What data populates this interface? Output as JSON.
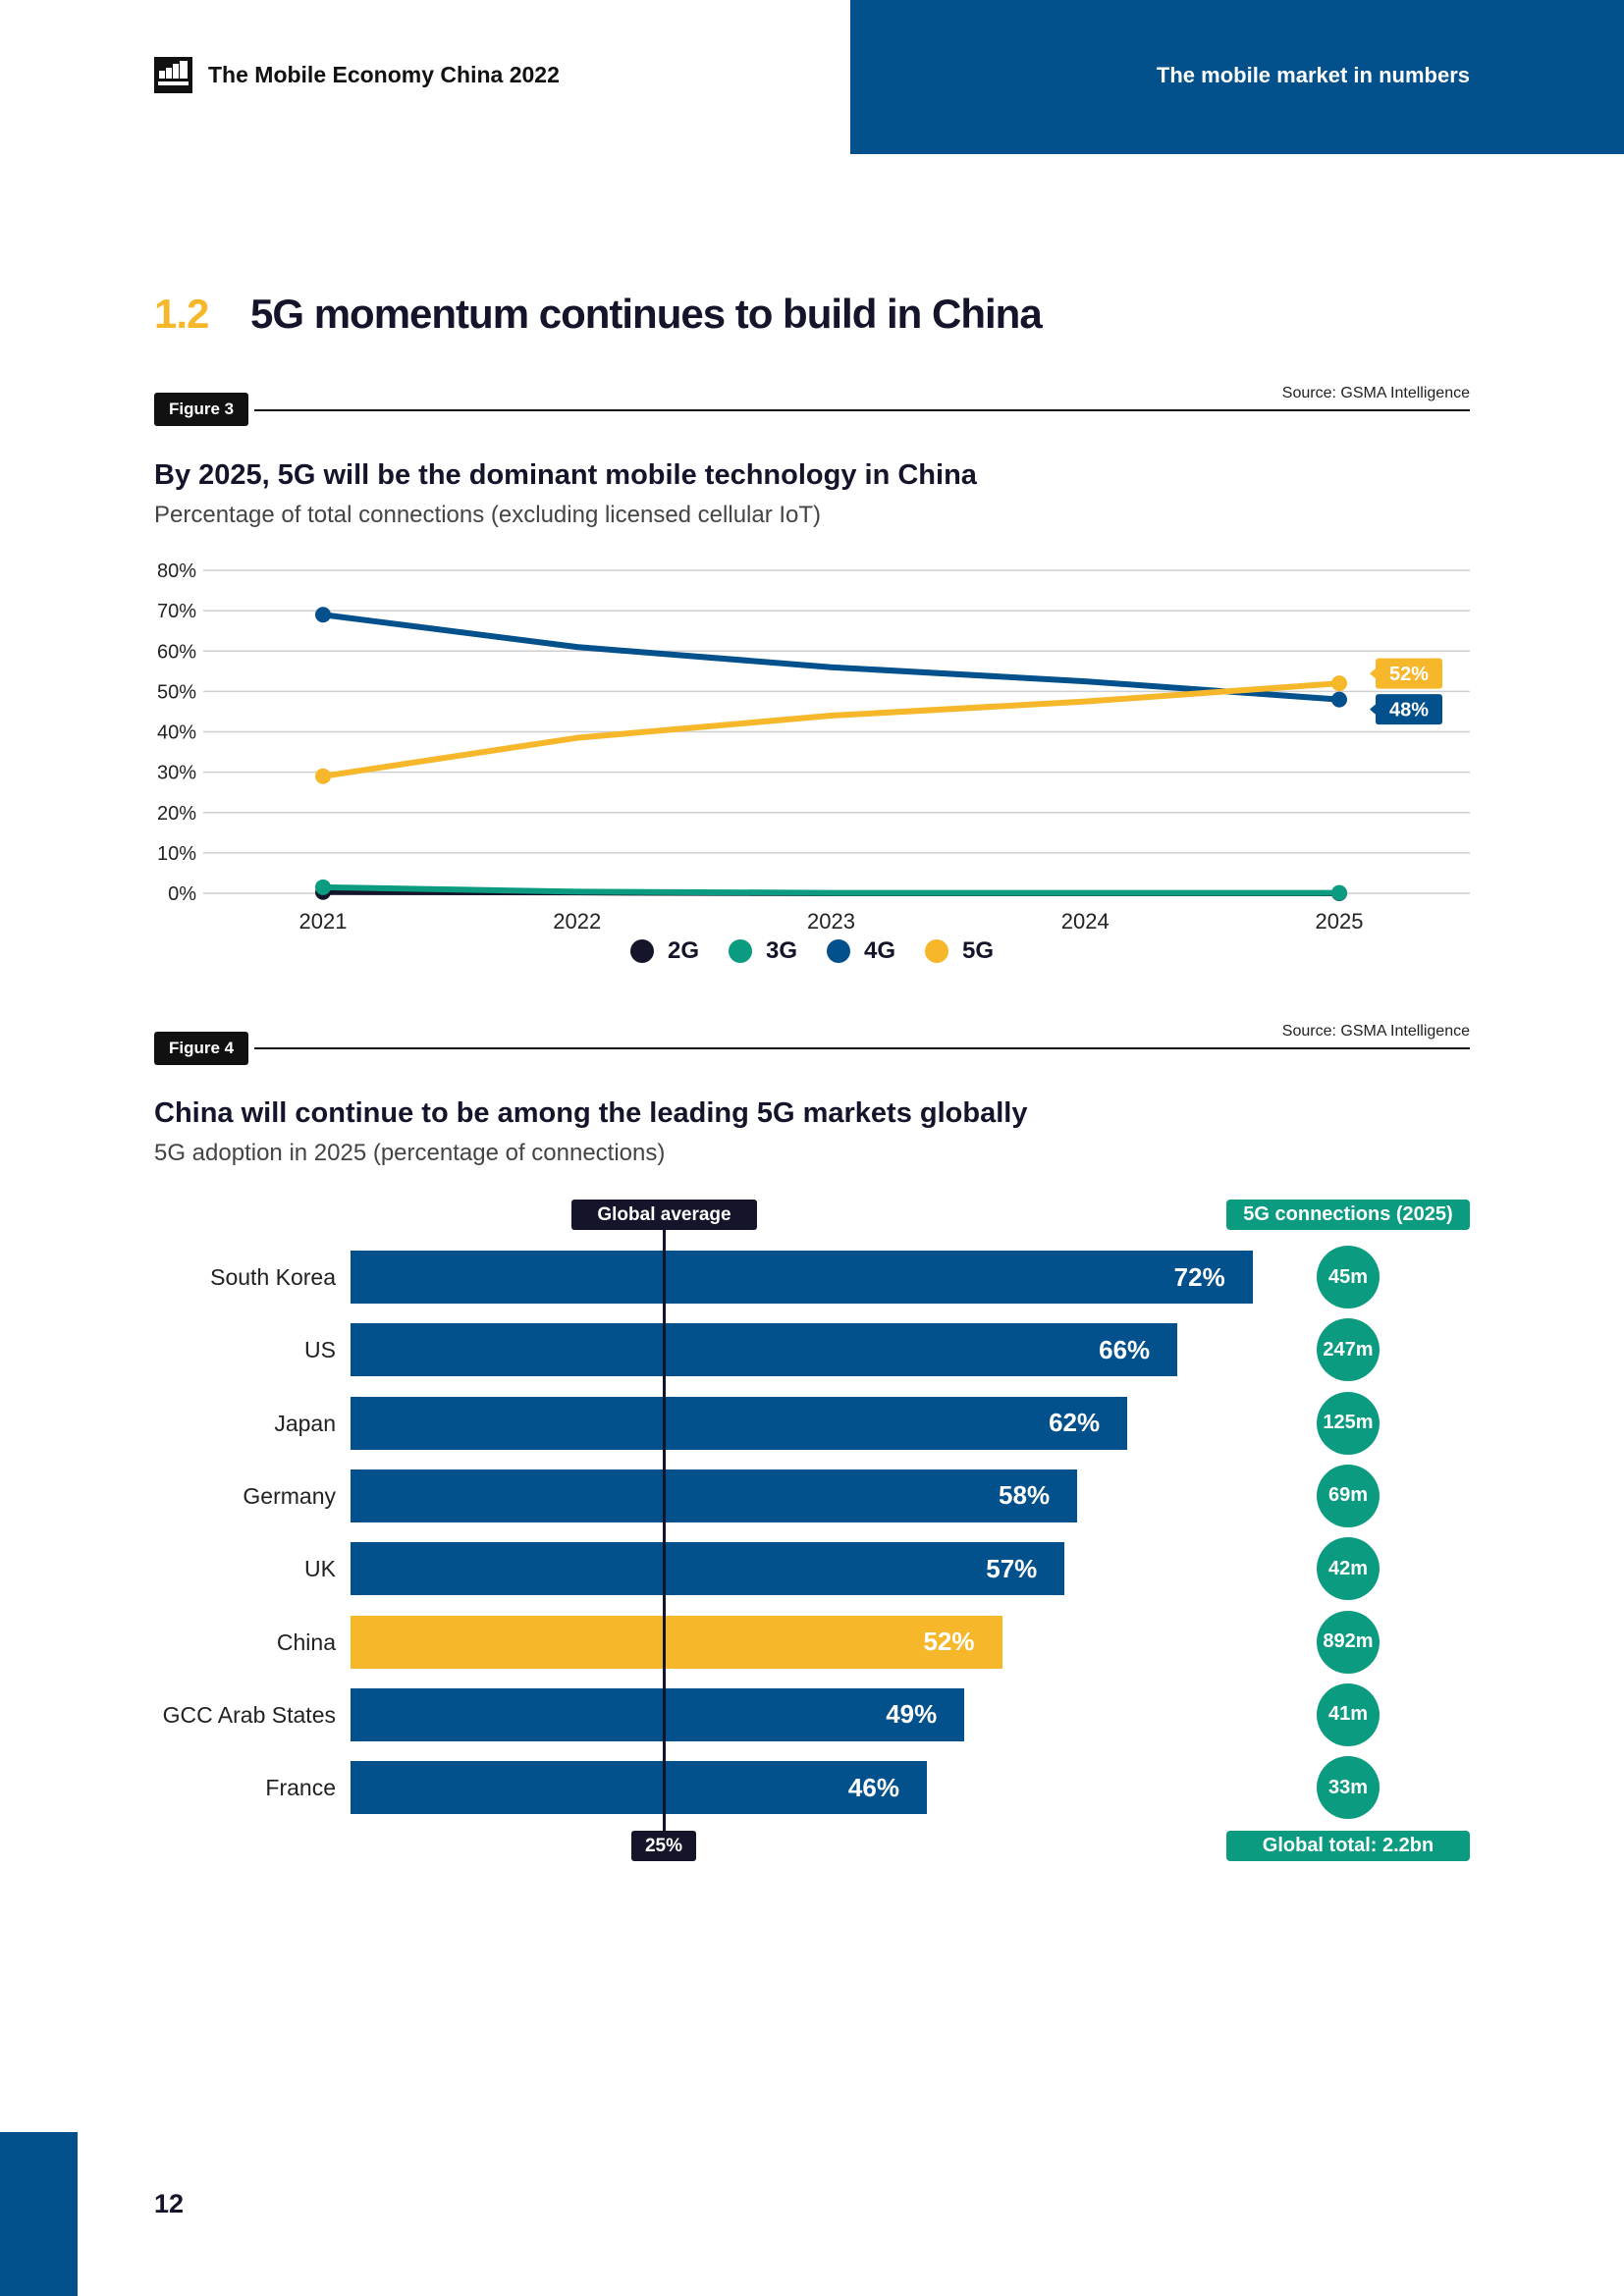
{
  "header": {
    "logo": "gsma-logo",
    "title": "The Mobile Economy China 2022",
    "section_label": "The mobile market in numbers"
  },
  "section": {
    "number": "1.2",
    "title": "5G momentum continues to build in China"
  },
  "figure3": {
    "tag": "Figure 3",
    "source": "Source: GSMA Intelligence",
    "title": "By 2025, 5G will be the dominant mobile technology in China",
    "subtitle": "Percentage of total connections (excluding licensed cellular IoT)"
  },
  "figure4": {
    "tag": "Figure 4",
    "source": "Source: GSMA Intelligence",
    "title": "China will continue to be among the leading 5G markets globally",
    "subtitle": "5G adoption in 2025 (percentage of connections)",
    "global_average_label": "Global average",
    "global_average_value": "25%",
    "connections_header": "5G connections (2025)",
    "global_total": "Global total: 2.2bn"
  },
  "colors": {
    "2G": "#14142b",
    "3G": "#0b9b80",
    "4G": "#02508c",
    "5G": "#f6b82a",
    "brand_blue": "#02508c",
    "highlight": "#f6b82a"
  },
  "chart_data": [
    {
      "type": "line",
      "title": "By 2025, 5G will be the dominant mobile technology in China",
      "subtitle": "Percentage of total connections (excluding licensed cellular IoT)",
      "xlabel": "",
      "ylabel": "",
      "x": [
        "2021",
        "2022",
        "2023",
        "2024",
        "2025"
      ],
      "ylim": [
        0,
        80
      ],
      "yticks": [
        "0%",
        "10%",
        "20%",
        "30%",
        "40%",
        "50%",
        "60%",
        "70%",
        "80%"
      ],
      "grid": true,
      "legend": "bottom-center",
      "series": [
        {
          "name": "2G",
          "values": [
            0.3,
            0.2,
            0,
            0,
            0
          ]
        },
        {
          "name": "3G",
          "values": [
            1.5,
            0.4,
            0.1,
            0.1,
            0.1
          ]
        },
        {
          "name": "4G",
          "values": [
            69,
            61,
            56,
            52.5,
            48
          ]
        },
        {
          "name": "5G",
          "values": [
            29,
            38.5,
            44,
            47.5,
            52
          ]
        }
      ],
      "end_labels": [
        {
          "series": "5G",
          "text": "52%"
        },
        {
          "series": "4G",
          "text": "48%"
        }
      ]
    },
    {
      "type": "bar",
      "orientation": "horizontal",
      "title": "China will continue to be among the leading 5G markets globally",
      "subtitle": "5G adoption in 2025 (percentage of connections)",
      "categories": [
        "South Korea",
        "US",
        "Japan",
        "Germany",
        "UK",
        "China",
        "GCC Arab States",
        "France"
      ],
      "values": [
        72,
        66,
        62,
        58,
        57,
        52,
        49,
        46
      ],
      "value_labels": [
        "72%",
        "66%",
        "62%",
        "58%",
        "57%",
        "52%",
        "49%",
        "46%"
      ],
      "highlight": "China",
      "reference_line": {
        "label": "Global average",
        "value": 25,
        "value_label": "25%"
      },
      "connections_2025": [
        "45m",
        "247m",
        "125m",
        "69m",
        "42m",
        "892m",
        "41m",
        "33m"
      ],
      "connections_total": "Global total: 2.2bn",
      "xlim": [
        0,
        72
      ]
    }
  ],
  "footer": {
    "page_number": "12"
  }
}
